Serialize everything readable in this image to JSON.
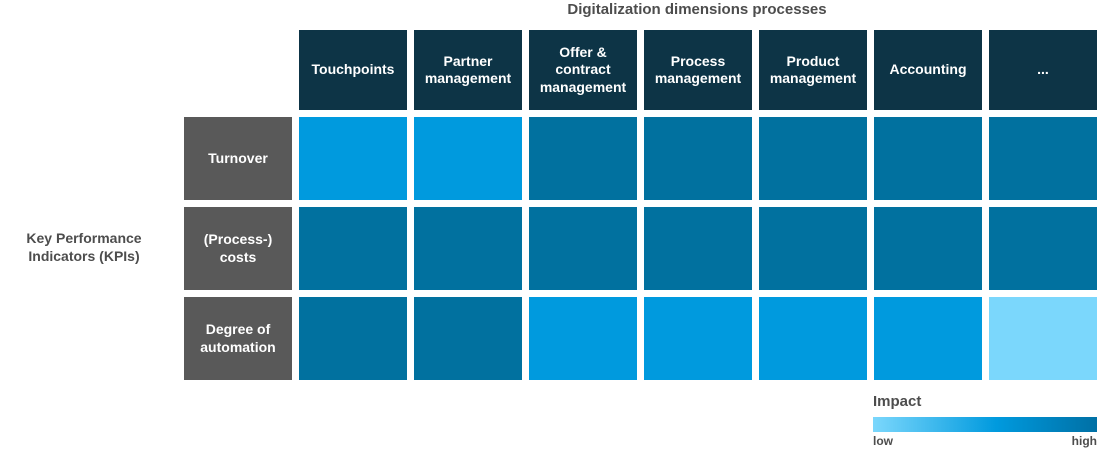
{
  "colors": {
    "background": "#ffffff",
    "header_bg": "#0d3446",
    "row_label_bg": "#595959",
    "axis_text": "#4d4d4d",
    "cell_text": "#ffffff",
    "impact_low": "#7bd7fc",
    "impact_medium": "#009ade",
    "impact_high": "#01719f",
    "gradient": [
      "#7bd7fc",
      "#009ade",
      "#0070a5"
    ]
  },
  "chart_data": {
    "type": "heatmap",
    "title": "Digitalization dimensions processes",
    "ylabel": "Key Performance Indicators (KPIs)",
    "x_categories": [
      "Touchpoints",
      "Partner management",
      "Offer & contract management",
      "Process management",
      "Product management",
      "Accounting",
      "..."
    ],
    "y_categories": [
      "Turnover",
      "(Process-) costs",
      "Degree of automation"
    ],
    "values": [
      [
        "medium",
        "medium",
        "high",
        "high",
        "high",
        "high",
        "high"
      ],
      [
        "high",
        "high",
        "high",
        "high",
        "high",
        "high",
        "high"
      ],
      [
        "high",
        "high",
        "medium",
        "medium",
        "medium",
        "medium",
        "low"
      ]
    ],
    "value_scale": {
      "low": "#7bd7fc",
      "medium": "#009ade",
      "high": "#01719f"
    },
    "grid": "off",
    "legend_position": "bottom-right"
  },
  "legend": {
    "title": "Impact",
    "low_label": "low",
    "high_label": "high"
  }
}
